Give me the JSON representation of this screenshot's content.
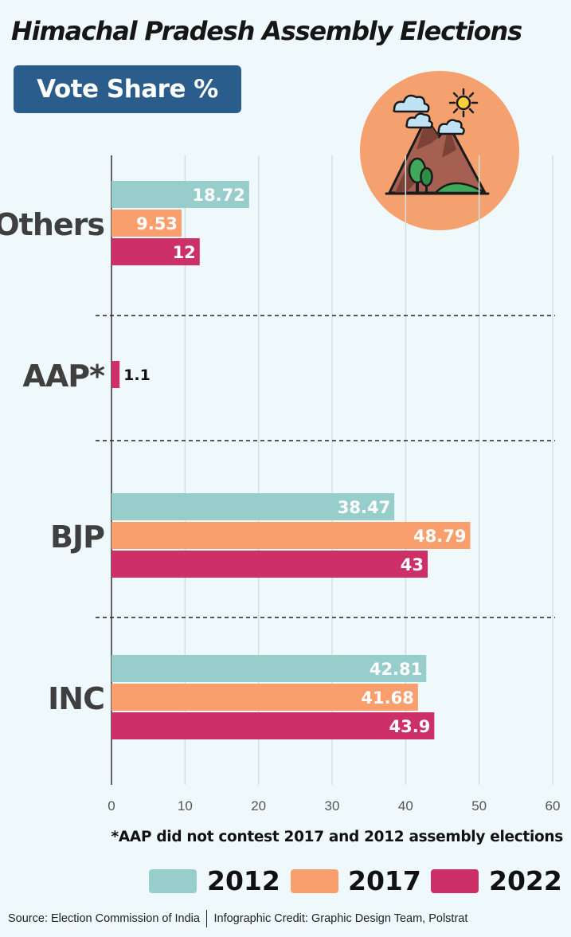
{
  "header": {
    "title": "Himachal Pradesh Assembly Elections",
    "badge": "Vote Share %"
  },
  "logo": {
    "icon": "mountain-sun-clouds-icon",
    "circle_color": "#f4a06f"
  },
  "chart_data": {
    "type": "bar",
    "orientation": "horizontal",
    "categories": [
      "Others",
      "AAP*",
      "BJP",
      "INC"
    ],
    "series": [
      {
        "name": "2012",
        "color": "#97cdcb",
        "values": [
          18.72,
          null,
          38.47,
          42.81
        ]
      },
      {
        "name": "2017",
        "color": "#f89f6d",
        "values": [
          9.53,
          null,
          48.79,
          41.68
        ]
      },
      {
        "name": "2022",
        "color": "#cd3066",
        "values": [
          12,
          1.1,
          43,
          43.9
        ]
      }
    ],
    "data_labels": [
      [
        "18.72",
        null,
        "38.47",
        "42.81"
      ],
      [
        "9.53",
        null,
        "48.79",
        "41.68"
      ],
      [
        "12",
        "1.1",
        "43",
        "43.9"
      ]
    ],
    "xlim": [
      0,
      60
    ],
    "xticks": [
      "0",
      "10",
      "20",
      "30",
      "40",
      "50",
      "60"
    ],
    "grid": true,
    "legend_position": "bottom"
  },
  "note": "*AAP did not contest 2017 and 2012 assembly elections",
  "footer": {
    "source": "Source: Election Commission of India",
    "credit": "Infographic Credit: Graphic Design Team, Polstrat"
  }
}
